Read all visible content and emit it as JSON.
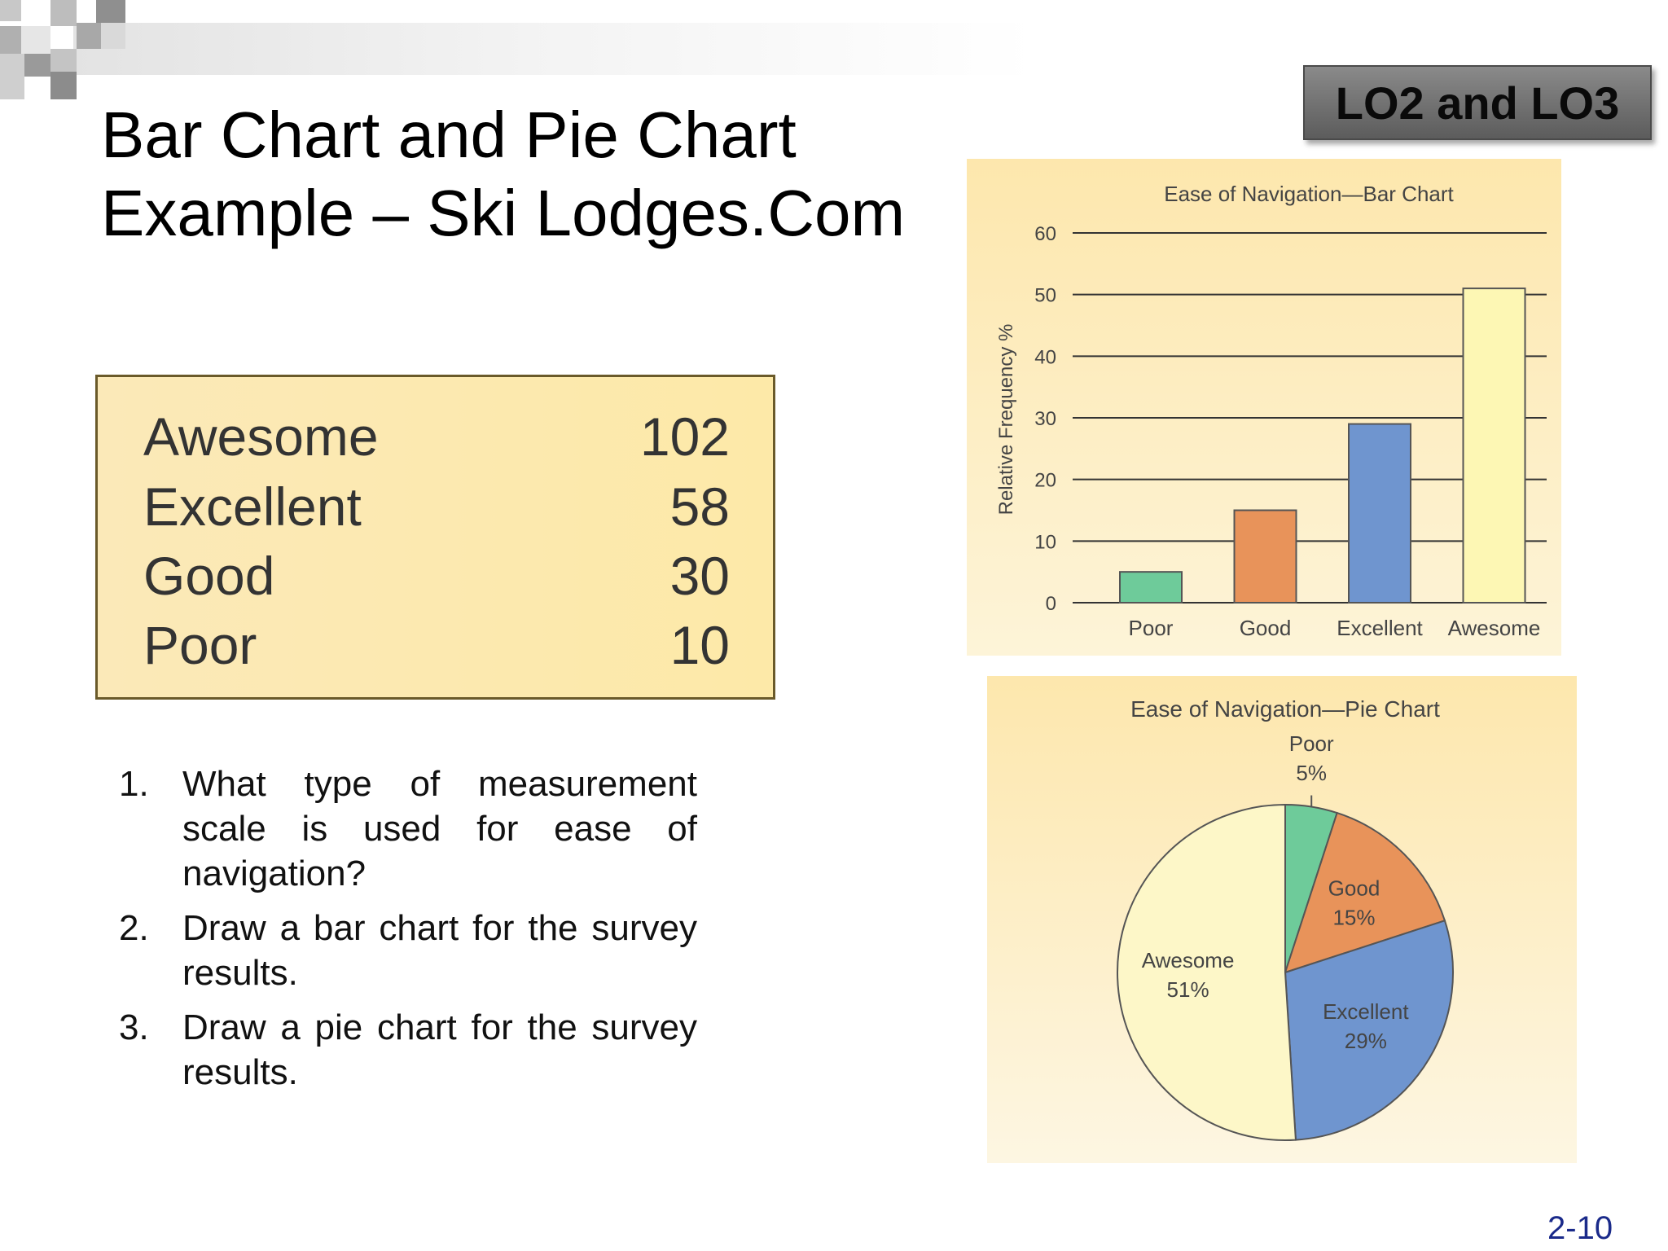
{
  "slide": {
    "title": "Bar Chart and Pie Chart Example – Ski Lodges.Com",
    "badge": "LO2 and LO3",
    "page_number": "2-10"
  },
  "table": {
    "rows": [
      {
        "label": "Awesome",
        "value": "102"
      },
      {
        "label": "Excellent",
        "value": "58"
      },
      {
        "label": "Good",
        "value": "30"
      },
      {
        "label": "Poor",
        "value": "10"
      }
    ]
  },
  "questions": [
    {
      "num": "1.",
      "text": "What type of measurement scale is used for ease of navigation?"
    },
    {
      "num": "2.",
      "text": "Draw a bar chart for the survey results."
    },
    {
      "num": "3.",
      "text": "Draw a pie chart for the survey results."
    }
  ],
  "chart_data": [
    {
      "type": "bar",
      "title": "Ease of Navigation—Bar Chart",
      "ylabel": "Relative Frequency %",
      "xlabel": "",
      "categories": [
        "Poor",
        "Good",
        "Excellent",
        "Awesome"
      ],
      "values": [
        5,
        15,
        29,
        51
      ],
      "colors": [
        "#6ecb9a",
        "#e8935a",
        "#6f95cf",
        "#fdf7b4"
      ],
      "ylim": [
        0,
        60
      ],
      "yticks": [
        0,
        10,
        20,
        30,
        40,
        50,
        60
      ],
      "grid": true
    },
    {
      "type": "pie",
      "title": "Ease of Navigation—Pie Chart",
      "categories": [
        "Poor",
        "Good",
        "Excellent",
        "Awesome"
      ],
      "values": [
        5,
        15,
        29,
        51
      ],
      "labels": [
        "5%",
        "15%",
        "29%",
        "51%"
      ],
      "colors": [
        "#6ecb9a",
        "#e8935a",
        "#6f95cf",
        "#fdf7c8"
      ]
    }
  ]
}
